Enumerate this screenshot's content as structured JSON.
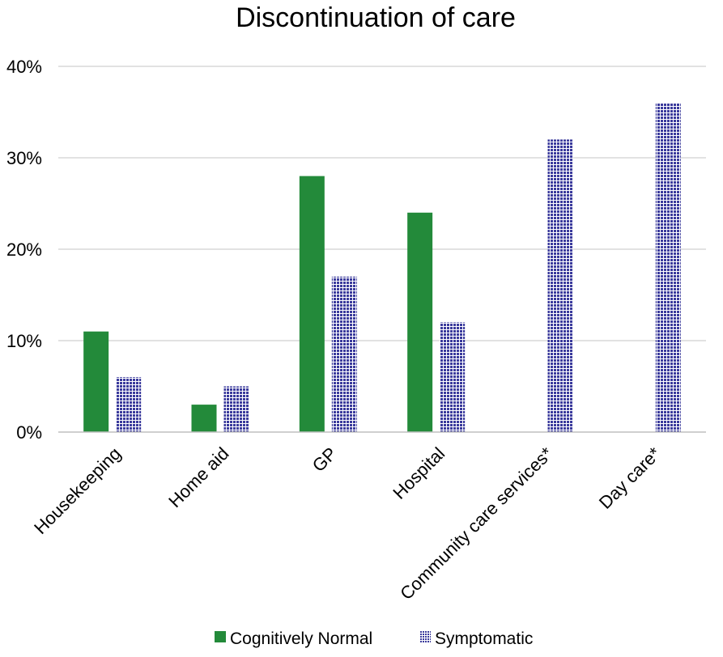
{
  "chart_data": {
    "type": "bar",
    "title": "Discontinuation of care",
    "xlabel": "",
    "ylabel": "",
    "ylim": [
      0,
      40
    ],
    "yticks": [
      "0%",
      "10%",
      "20%",
      "30%",
      "40%"
    ],
    "ytick_values": [
      0,
      10,
      20,
      30,
      40
    ],
    "grid": true,
    "legend_position": "bottom",
    "categories": [
      "Housekeeping",
      "Home aid",
      "GP",
      "Hospital",
      "Community care services*",
      "Day care*"
    ],
    "series": [
      {
        "name": "Cognitively Normal",
        "color": "#238a3a",
        "pattern": "solid",
        "values": [
          11,
          3,
          28,
          24,
          0,
          0
        ]
      },
      {
        "name": "Symptomatic",
        "color": "#3a3a9c",
        "pattern": "dotted",
        "values": [
          6,
          5,
          17,
          12,
          32,
          36
        ]
      }
    ]
  }
}
